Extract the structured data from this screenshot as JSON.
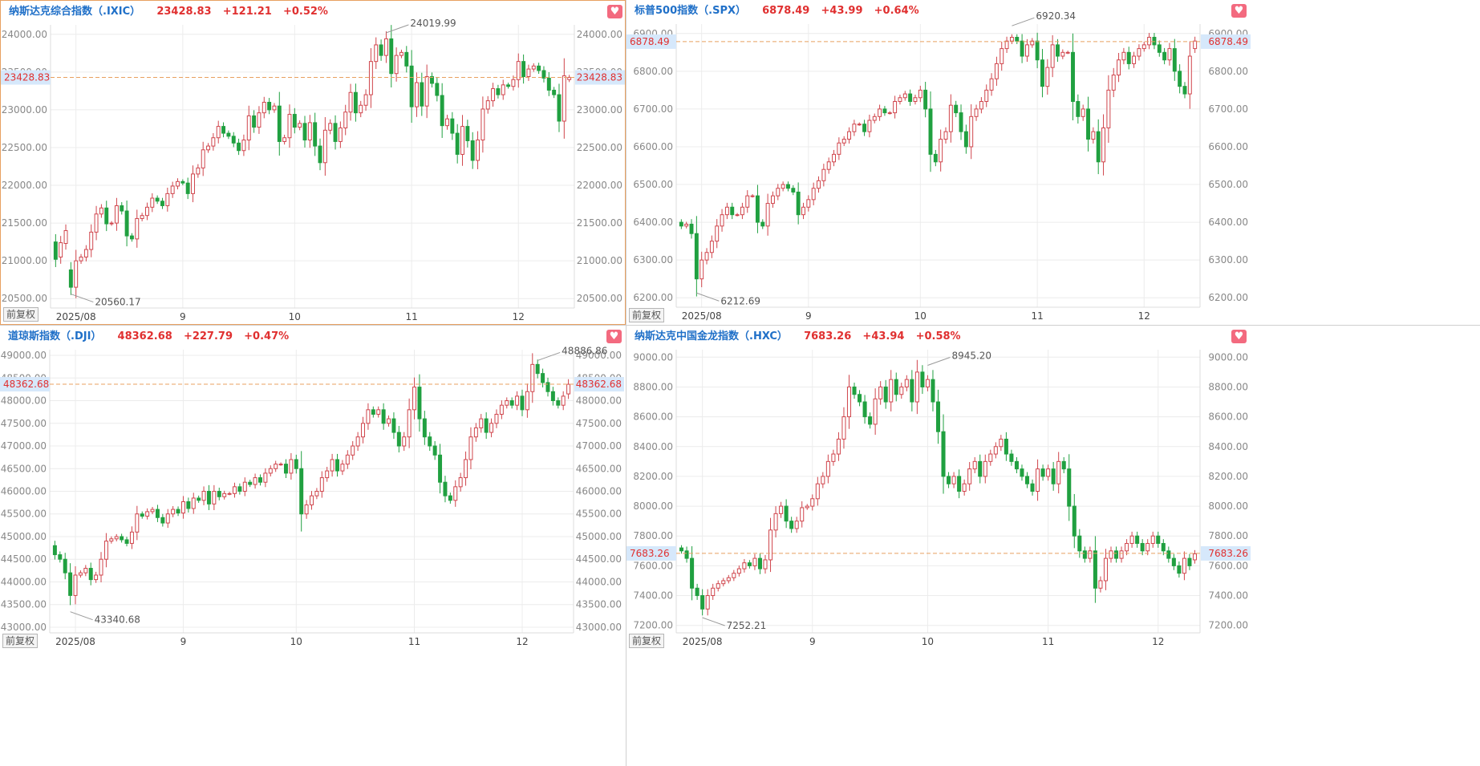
{
  "colors": {
    "up": "#d0454c",
    "down": "#20a040",
    "label_blue": "#2070c8",
    "change_red": "#e03030",
    "ref_line": "#e8a060",
    "grid": "#ececec",
    "axis_text": "#888888",
    "price_tag_bg": "#d6e8fb"
  },
  "panels": [
    {
      "title": "纳斯达克综合指数（.IXIC）",
      "price": "23428.83",
      "change": "+121.21",
      "pct": "+0.52%",
      "fav_icon": "heart-icon",
      "adjust_label": "前复权",
      "high_label": "24019.99",
      "low_label": "20560.17",
      "current_label": "23428.83",
      "chart_data": {
        "type": "candlestick",
        "y_ticks": [
          "24000.00",
          "23500.00",
          "23000.00",
          "22500.00",
          "22000.00",
          "21500.00",
          "21000.00",
          "20500.00"
        ],
        "y_tick_values": [
          24000,
          23500,
          23000,
          22500,
          22000,
          21500,
          21000,
          20500
        ],
        "x_labels": [
          "2025/08",
          "9",
          "10",
          "11",
          "12"
        ],
        "x_label_index": [
          4,
          25,
          47,
          70,
          91
        ],
        "current": 23428.83,
        "high": 24019.99,
        "high_index": 65,
        "low": 20560.17,
        "low_index": 3,
        "closes": [
          21020,
          21240,
          21400,
          20650,
          21000,
          21050,
          21150,
          21380,
          21620,
          21700,
          21490,
          21500,
          21730,
          21660,
          21330,
          21290,
          21560,
          21600,
          21710,
          21830,
          21790,
          21730,
          21890,
          21990,
          22050,
          22030,
          21890,
          22150,
          22230,
          22470,
          22520,
          22630,
          22780,
          22690,
          22650,
          22560,
          22460,
          22600,
          22920,
          22770,
          22960,
          23100,
          23000,
          23050,
          22580,
          22630,
          22940,
          22770,
          22820,
          22600,
          22830,
          22520,
          22300,
          22730,
          22820,
          22580,
          22760,
          22970,
          23230,
          22960,
          23060,
          23200,
          23640,
          23860,
          23720,
          23940,
          23480,
          23720,
          23760,
          23580,
          23040,
          23360,
          23050,
          23440,
          23350,
          23190,
          22790,
          22880,
          22690,
          22410,
          22780,
          22590,
          22330,
          22600,
          23010,
          23120,
          23280,
          23200,
          23330,
          23310,
          23400,
          23640,
          23440,
          23540,
          23580,
          23520,
          23420,
          23260,
          23200,
          22850,
          23450,
          23430
        ],
        "opens": [
          21250,
          21050,
          21230,
          20880,
          20650,
          21000,
          21050,
          21150,
          21380,
          21620,
          21700,
          21490,
          21500,
          21730,
          21660,
          21330,
          21290,
          21560,
          21600,
          21710,
          21830,
          21790,
          21730,
          21890,
          21990,
          22050,
          22030,
          21890,
          22150,
          22230,
          22470,
          22520,
          22630,
          22780,
          22690,
          22650,
          22560,
          22460,
          22600,
          22920,
          22770,
          22960,
          23100,
          23000,
          23050,
          22580,
          22630,
          22940,
          22770,
          22820,
          22600,
          22830,
          22520,
          22300,
          22730,
          22820,
          22580,
          22760,
          22970,
          23230,
          22960,
          23060,
          23200,
          23640,
          23860,
          23720,
          23940,
          23480,
          23720,
          23760,
          23580,
          23040,
          23360,
          23050,
          23440,
          23350,
          23190,
          22790,
          22880,
          22690,
          22410,
          22780,
          22590,
          22330,
          22600,
          23010,
          23120,
          23280,
          23200,
          23330,
          23310,
          23400,
          23640,
          23440,
          23540,
          23580,
          23520,
          23420,
          23260,
          23200,
          22850,
          23400
        ]
      }
    },
    {
      "title": "标普500指数（.SPX）",
      "price": "6878.49",
      "change": "+43.99",
      "pct": "+0.64%",
      "fav_icon": "heart-icon",
      "adjust_label": "前复权",
      "high_label": "6920.34",
      "low_label": "6212.69",
      "current_label": "6878.49",
      "chart_data": {
        "type": "candlestick",
        "y_ticks": [
          "6900.00",
          "6800.00",
          "6700.00",
          "6600.00",
          "6500.00",
          "6400.00",
          "6300.00",
          "6200.00"
        ],
        "y_tick_values": [
          6900,
          6800,
          6700,
          6600,
          6500,
          6400,
          6300,
          6200
        ],
        "x_labels": [
          "2025/08",
          "9",
          "10",
          "11",
          "12"
        ],
        "x_label_index": [
          4,
          25,
          47,
          70,
          91
        ],
        "current": 6878.49,
        "high": 6920.34,
        "high_index": 65,
        "low": 6212.69,
        "low_index": 3,
        "closes": [
          6390,
          6395,
          6370,
          6250,
          6300,
          6320,
          6350,
          6390,
          6420,
          6440,
          6420,
          6420,
          6440,
          6470,
          6470,
          6400,
          6390,
          6450,
          6470,
          6490,
          6500,
          6490,
          6480,
          6420,
          6440,
          6460,
          6490,
          6510,
          6540,
          6560,
          6580,
          6610,
          6620,
          6640,
          6660,
          6660,
          6640,
          6670,
          6680,
          6700,
          6690,
          6690,
          6720,
          6730,
          6740,
          6720,
          6730,
          6750,
          6700,
          6580,
          6560,
          6620,
          6640,
          6710,
          6690,
          6640,
          6600,
          6680,
          6700,
          6720,
          6750,
          6780,
          6820,
          6860,
          6880,
          6890,
          6880,
          6840,
          6870,
          6880,
          6830,
          6760,
          6810,
          6870,
          6840,
          6850,
          6850,
          6720,
          6680,
          6700,
          6620,
          6640,
          6560,
          6650,
          6750,
          6790,
          6830,
          6850,
          6820,
          6840,
          6860,
          6870,
          6890,
          6870,
          6850,
          6830,
          6860,
          6800,
          6760,
          6740,
          6840,
          6880
        ],
        "opens": [
          6400,
          6390,
          6395,
          6370,
          6250,
          6300,
          6320,
          6350,
          6390,
          6420,
          6440,
          6420,
          6420,
          6440,
          6470,
          6470,
          6400,
          6390,
          6450,
          6470,
          6490,
          6500,
          6490,
          6480,
          6420,
          6440,
          6460,
          6490,
          6510,
          6540,
          6560,
          6580,
          6610,
          6620,
          6640,
          6660,
          6660,
          6640,
          6670,
          6680,
          6700,
          6690,
          6690,
          6720,
          6730,
          6740,
          6720,
          6730,
          6750,
          6700,
          6580,
          6560,
          6620,
          6640,
          6710,
          6690,
          6640,
          6600,
          6680,
          6700,
          6720,
          6750,
          6780,
          6820,
          6860,
          6880,
          6890,
          6880,
          6840,
          6870,
          6880,
          6830,
          6760,
          6810,
          6870,
          6840,
          6850,
          6850,
          6720,
          6680,
          6700,
          6620,
          6640,
          6560,
          6650,
          6750,
          6790,
          6830,
          6850,
          6820,
          6840,
          6860,
          6870,
          6890,
          6870,
          6850,
          6830,
          6860,
          6800,
          6760,
          6740,
          6860
        ]
      }
    },
    {
      "title": "道琼斯指数（.DJI）",
      "price": "48362.68",
      "change": "+227.79",
      "pct": "+0.47%",
      "fav_icon": "heart-icon",
      "adjust_label": "前复权",
      "high_label": "48886.86",
      "low_label": "43340.68",
      "current_label": "48362.68",
      "chart_data": {
        "type": "candlestick",
        "y_ticks": [
          "49000.00",
          "48500.00",
          "48000.00",
          "47500.00",
          "47000.00",
          "46500.00",
          "46000.00",
          "45500.00",
          "45000.00",
          "44500.00",
          "44000.00",
          "43500.00",
          "43000.00"
        ],
        "y_tick_values": [
          49000,
          48500,
          48000,
          47500,
          47000,
          46500,
          46000,
          45500,
          45000,
          44500,
          44000,
          43500,
          43000
        ],
        "x_labels": [
          "2025/08",
          "9",
          "10",
          "11",
          "12"
        ],
        "x_label_index": [
          4,
          25,
          47,
          70,
          91
        ],
        "current": 48362.68,
        "high": 48886.86,
        "high_index": 94,
        "low": 43340.68,
        "low_index": 3,
        "closes": [
          44600,
          44500,
          44200,
          43700,
          44150,
          44200,
          44300,
          44050,
          44150,
          44500,
          44900,
          44950,
          45000,
          44930,
          44850,
          45100,
          45500,
          45450,
          45550,
          45600,
          45420,
          45300,
          45500,
          45600,
          45520,
          45770,
          45620,
          45850,
          45800,
          46000,
          45720,
          46000,
          45880,
          45950,
          45950,
          46100,
          46000,
          46200,
          46150,
          46300,
          46200,
          46400,
          46500,
          46600,
          46600,
          46400,
          46700,
          46500,
          45500,
          45700,
          45900,
          46000,
          46300,
          46450,
          46700,
          46450,
          46600,
          46800,
          47000,
          47200,
          47500,
          47800,
          47700,
          47800,
          47500,
          47600,
          47300,
          47000,
          47200,
          47800,
          48300,
          47600,
          47200,
          47000,
          46800,
          46200,
          45900,
          45800,
          46100,
          46300,
          46700,
          47200,
          47400,
          47600,
          47300,
          47500,
          47700,
          47900,
          48000,
          47900,
          48100,
          47800,
          48200,
          48800,
          48600,
          48400,
          48200,
          48000,
          47900,
          48100,
          48362
        ],
        "opens": [
          44800,
          44600,
          44500,
          44200,
          43700,
          44150,
          44200,
          44300,
          44050,
          44150,
          44500,
          44900,
          44950,
          45000,
          44930,
          44850,
          45100,
          45500,
          45450,
          45550,
          45600,
          45420,
          45300,
          45500,
          45600,
          45520,
          45770,
          45620,
          45850,
          45800,
          46000,
          45720,
          46000,
          45880,
          45950,
          45950,
          46100,
          46000,
          46200,
          46150,
          46300,
          46200,
          46400,
          46500,
          46600,
          46600,
          46400,
          46700,
          46500,
          45500,
          45700,
          45900,
          46000,
          46300,
          46450,
          46700,
          46450,
          46600,
          46800,
          47000,
          47200,
          47500,
          47800,
          47700,
          47800,
          47500,
          47600,
          47300,
          47000,
          47200,
          47800,
          48300,
          47600,
          47200,
          47000,
          46800,
          46200,
          45900,
          45800,
          46100,
          46300,
          46700,
          47200,
          47400,
          47600,
          47300,
          47500,
          47700,
          47900,
          48000,
          47900,
          48100,
          47800,
          48200,
          48800,
          48600,
          48400,
          48200,
          48000,
          47900,
          48150
        ]
      }
    },
    {
      "title": "纳斯达克中国金龙指数（.HXC）",
      "price": "7683.26",
      "change": "+43.94",
      "pct": "+0.58%",
      "fav_icon": "heart-icon",
      "adjust_label": "前复权",
      "high_label": "8945.20",
      "low_label": "7252.21",
      "current_label": "7683.26",
      "chart_data": {
        "type": "candlestick",
        "y_ticks": [
          "9000.00",
          "8800.00",
          "8600.00",
          "8400.00",
          "8200.00",
          "8000.00",
          "7800.00",
          "7600.00",
          "7400.00",
          "7200.00"
        ],
        "y_tick_values": [
          9000,
          8800,
          8600,
          8400,
          8200,
          8000,
          7800,
          7600,
          7400,
          7200
        ],
        "x_labels": [
          "2025/08",
          "9",
          "10",
          "11",
          "12"
        ],
        "x_label_index": [
          4,
          25,
          47,
          70,
          91
        ],
        "current": 7683.26,
        "high": 8945.2,
        "high_index": 47,
        "low": 7252.21,
        "low_index": 4,
        "closes": [
          7700,
          7650,
          7450,
          7400,
          7310,
          7400,
          7450,
          7480,
          7500,
          7520,
          7550,
          7580,
          7620,
          7600,
          7650,
          7580,
          7640,
          7840,
          7950,
          8000,
          7900,
          7850,
          7900,
          7990,
          8000,
          8050,
          8150,
          8200,
          8300,
          8350,
          8450,
          8600,
          8800,
          8750,
          8700,
          8600,
          8550,
          8720,
          8800,
          8700,
          8850,
          8750,
          8800,
          8850,
          8700,
          8900,
          8800,
          8850,
          8700,
          8500,
          8200,
          8150,
          8200,
          8100,
          8150,
          8250,
          8300,
          8200,
          8300,
          8350,
          8400,
          8450,
          8350,
          8300,
          8250,
          8200,
          8150,
          8100,
          8250,
          8200,
          8250,
          8150,
          8300,
          8250,
          8000,
          7800,
          7700,
          7650,
          7700,
          7450,
          7500,
          7650,
          7700,
          7650,
          7700,
          7750,
          7800,
          7750,
          7700,
          7750,
          7800,
          7750,
          7700,
          7650,
          7600,
          7550,
          7650,
          7600,
          7680
        ],
        "opens": [
          7720,
          7700,
          7650,
          7450,
          7400,
          7310,
          7400,
          7450,
          7480,
          7500,
          7520,
          7550,
          7580,
          7620,
          7600,
          7650,
          7580,
          7640,
          7840,
          7950,
          8000,
          7900,
          7850,
          7900,
          7990,
          8000,
          8050,
          8150,
          8200,
          8300,
          8350,
          8450,
          8600,
          8800,
          8750,
          8700,
          8600,
          8550,
          8720,
          8800,
          8700,
          8850,
          8750,
          8800,
          8850,
          8700,
          8900,
          8800,
          8850,
          8700,
          8500,
          8200,
          8150,
          8200,
          8100,
          8150,
          8250,
          8300,
          8200,
          8300,
          8350,
          8400,
          8450,
          8350,
          8300,
          8250,
          8200,
          8150,
          8100,
          8250,
          8200,
          8250,
          8150,
          8300,
          8250,
          8000,
          7800,
          7700,
          7650,
          7700,
          7450,
          7500,
          7650,
          7700,
          7650,
          7700,
          7750,
          7800,
          7750,
          7700,
          7750,
          7800,
          7750,
          7700,
          7650,
          7600,
          7550,
          7650,
          7640
        ]
      }
    }
  ]
}
